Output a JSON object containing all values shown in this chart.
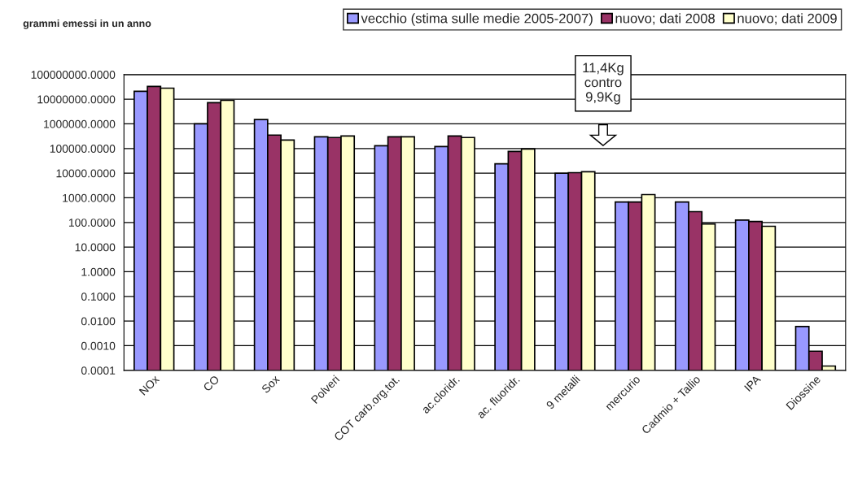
{
  "chart_data": {
    "type": "bar",
    "ylabel": "grammi emessi in un anno",
    "categories": [
      "NOx",
      "CO",
      "Sox",
      "Polveri",
      "COT carb.org.tot.",
      "ac.cloridr.",
      "ac. fluoridr.",
      "9 metalli",
      "mercurio",
      "Cadmio + Tallio",
      "IPA",
      "Diossine"
    ],
    "series": [
      {
        "name": "vecchio (stima sulle medie 2005-2007)",
        "color": "#9999ff",
        "values": [
          21000000,
          1000000,
          1500000,
          300000,
          130000,
          120000,
          24000,
          9900,
          680,
          680,
          125,
          0.006
        ]
      },
      {
        "name": "nuovo; dati 2008",
        "color": "#993366",
        "values": [
          33000000,
          7200000,
          350000,
          280000,
          300000,
          320000,
          76000,
          10500,
          680,
          275,
          110,
          0.0006
        ]
      },
      {
        "name": "nuovo; dati 2009",
        "color": "#ffffcc",
        "values": [
          28000000,
          9000000,
          220000,
          320000,
          300000,
          280000,
          95000,
          11400,
          1350,
          87,
          70,
          0.00015
        ]
      }
    ],
    "log": "y",
    "ylim": [
      0.0001,
      100000000
    ],
    "yticks": [
      {
        "value": 0.0001,
        "label": "0.0001"
      },
      {
        "value": 0.001,
        "label": "0.0010"
      },
      {
        "value": 0.01,
        "label": "0.0100"
      },
      {
        "value": 0.1,
        "label": "0.1000"
      },
      {
        "value": 1,
        "label": "1.0000"
      },
      {
        "value": 10,
        "label": "10.0000"
      },
      {
        "value": 100,
        "label": "100.0000"
      },
      {
        "value": 1000,
        "label": "1000.0000"
      },
      {
        "value": 10000,
        "label": "10000.0000"
      },
      {
        "value": 100000,
        "label": "100000.0000"
      },
      {
        "value": 1000000,
        "label": "1000000.0000"
      },
      {
        "value": 10000000,
        "label": "10000000.0000"
      },
      {
        "value": 100000000,
        "label": "100000000.0000"
      }
    ],
    "grid": "y",
    "legend": "top",
    "annotations": [
      "11,4Kg\ncontro\n9,9Kg"
    ]
  }
}
